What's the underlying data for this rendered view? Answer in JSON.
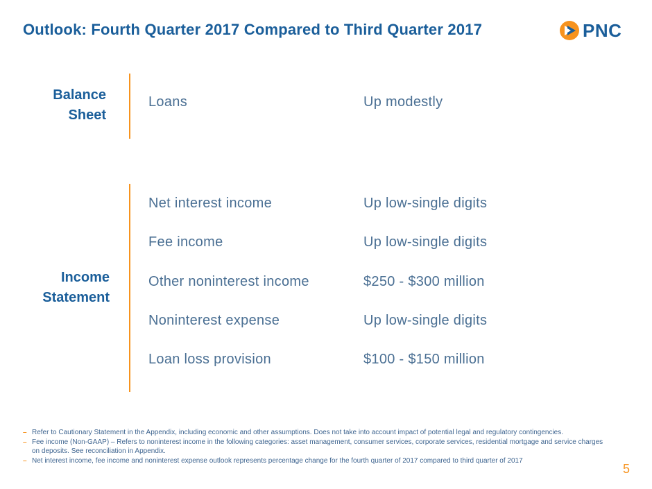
{
  "title": "Outlook: Fourth Quarter 2017 Compared to Third Quarter 2017",
  "logo": {
    "text": "PNC",
    "icon": "pnc-logo-icon",
    "colors": {
      "orange": "#f7931e",
      "blue": "#1a5e9a"
    }
  },
  "balance_sheet": {
    "label_line1": "Balance",
    "label_line2": "Sheet",
    "rows": [
      {
        "item": "Loans",
        "value": "Up modestly"
      }
    ]
  },
  "income_statement": {
    "label_line1": "Income",
    "label_line2": "Statement",
    "rows": [
      {
        "item": "Net interest income",
        "value": "Up low-single digits"
      },
      {
        "item": "Fee income",
        "value": "Up low-single digits"
      },
      {
        "item": "Other noninterest income",
        "value": "$250 - $300 million"
      },
      {
        "item": "Noninterest expense",
        "value": "Up low-single digits"
      },
      {
        "item": "Loan loss provision",
        "value": "$100 - $150 million"
      }
    ]
  },
  "footnotes": [
    "Refer to Cautionary Statement in the Appendix, including economic and other assumptions. Does not take into account impact of potential legal and regulatory contingencies.",
    "Fee income (Non-GAAP) – Refers to noninterest income in the following categories: asset management, consumer services, corporate services, residential mortgage and service charges on deposits.  See reconciliation in Appendix.",
    "Net interest income, fee income and noninterest expense outlook represents percentage change for the fourth quarter of 2017 compared to third quarter of 2017"
  ],
  "footnote_marker": "–",
  "page_number": "5",
  "colors": {
    "title": "#1a5e9a",
    "accent": "#f7931e",
    "body_text": "#4a6f93"
  }
}
